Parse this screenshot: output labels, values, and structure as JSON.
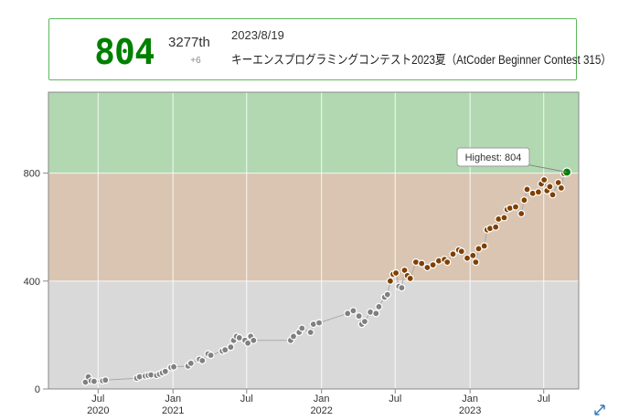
{
  "status": {
    "rating": "804",
    "rank": "3277th",
    "diff": "+6",
    "date": "2023/8/19",
    "contest": "キーエンスプログラミングコンテスト2023夏（AtCoder Beginner Contest 315）"
  },
  "colors": {
    "gray_band": "#d9d9d9",
    "brown_band": "#d9c5b2",
    "green_band": "#b2d8b2",
    "line": "#aaaaaa",
    "gray_point": "#808080",
    "brown_point": "#804000",
    "green_point": "#008000",
    "accent_border": "#5cb85c",
    "expand_icon": "#337ab7"
  },
  "icons": {
    "expand": "expand-arrows-icon"
  },
  "chart_data": {
    "type": "line",
    "ylim": [
      0,
      1100
    ],
    "y_ticks": [
      {
        "value": 0,
        "label": "0"
      },
      {
        "value": 400,
        "label": "400"
      },
      {
        "value": 800,
        "label": "800"
      }
    ],
    "xlim": [
      "2020-03-01",
      "2023-09-25"
    ],
    "x_ticks": [
      {
        "date": "2020-07-01",
        "label": "Jul",
        "year": "2020"
      },
      {
        "date": "2021-01-01",
        "label": "Jan",
        "year": "2021"
      },
      {
        "date": "2021-07-01",
        "label": "Jul",
        "year": ""
      },
      {
        "date": "2022-01-01",
        "label": "Jan",
        "year": "2022"
      },
      {
        "date": "2022-07-01",
        "label": "Jul",
        "year": ""
      },
      {
        "date": "2023-01-01",
        "label": "Jan",
        "year": "2023"
      },
      {
        "date": "2023-07-01",
        "label": "Jul",
        "year": ""
      }
    ],
    "bands": [
      {
        "from": 0,
        "to": 400,
        "color": "#d9d9d9"
      },
      {
        "from": 400,
        "to": 800,
        "color": "#d9c5b2"
      },
      {
        "from": 800,
        "to": 1100,
        "color": "#b2d8b2"
      }
    ],
    "highest_label": "Highest: 804",
    "points": [
      [
        "2020-05-31",
        25
      ],
      [
        "2020-06-07",
        45
      ],
      [
        "2020-06-14",
        30
      ],
      [
        "2020-06-21",
        28
      ],
      [
        "2020-07-12",
        30
      ],
      [
        "2020-07-19",
        33
      ],
      [
        "2020-10-04",
        40
      ],
      [
        "2020-10-11",
        45
      ],
      [
        "2020-10-25",
        48
      ],
      [
        "2020-11-01",
        50
      ],
      [
        "2020-11-08",
        52
      ],
      [
        "2020-11-22",
        50
      ],
      [
        "2020-11-29",
        55
      ],
      [
        "2020-12-06",
        60
      ],
      [
        "2020-12-13",
        65
      ],
      [
        "2020-12-27",
        80
      ],
      [
        "2021-01-03",
        82
      ],
      [
        "2021-02-07",
        85
      ],
      [
        "2021-02-14",
        95
      ],
      [
        "2021-03-07",
        110
      ],
      [
        "2021-03-14",
        105
      ],
      [
        "2021-03-28",
        130
      ],
      [
        "2021-04-04",
        125
      ],
      [
        "2021-05-02",
        140
      ],
      [
        "2021-05-09",
        145
      ],
      [
        "2021-05-23",
        155
      ],
      [
        "2021-05-30",
        180
      ],
      [
        "2021-06-06",
        195
      ],
      [
        "2021-06-13",
        190
      ],
      [
        "2021-06-27",
        180
      ],
      [
        "2021-07-04",
        170
      ],
      [
        "2021-07-11",
        195
      ],
      [
        "2021-07-18",
        180
      ],
      [
        "2021-10-17",
        180
      ],
      [
        "2021-10-24",
        195
      ],
      [
        "2021-11-07",
        210
      ],
      [
        "2021-11-14",
        225
      ],
      [
        "2021-12-05",
        210
      ],
      [
        "2021-12-12",
        240
      ],
      [
        "2021-12-26",
        245
      ],
      [
        "2022-03-06",
        280
      ],
      [
        "2022-03-20",
        290
      ],
      [
        "2022-04-03",
        270
      ],
      [
        "2022-04-10",
        240
      ],
      [
        "2022-04-17",
        250
      ],
      [
        "2022-05-01",
        285
      ],
      [
        "2022-05-15",
        280
      ],
      [
        "2022-05-22",
        305
      ],
      [
        "2022-06-05",
        340
      ],
      [
        "2022-06-12",
        350
      ],
      [
        "2022-06-19",
        400
      ],
      [
        "2022-06-26",
        425
      ],
      [
        "2022-07-03",
        430
      ],
      [
        "2022-07-10",
        380
      ],
      [
        "2022-07-17",
        375
      ],
      [
        "2022-07-24",
        440
      ],
      [
        "2022-07-31",
        420
      ],
      [
        "2022-08-07",
        410
      ],
      [
        "2022-08-21",
        470
      ],
      [
        "2022-09-04",
        465
      ],
      [
        "2022-09-18",
        450
      ],
      [
        "2022-10-02",
        460
      ],
      [
        "2022-10-16",
        475
      ],
      [
        "2022-10-30",
        480
      ],
      [
        "2022-11-06",
        470
      ],
      [
        "2022-11-20",
        500
      ],
      [
        "2022-12-04",
        515
      ],
      [
        "2022-12-11",
        510
      ],
      [
        "2022-12-25",
        485
      ],
      [
        "2023-01-08",
        495
      ],
      [
        "2023-01-15",
        470
      ],
      [
        "2023-01-22",
        520
      ],
      [
        "2023-02-05",
        530
      ],
      [
        "2023-02-12",
        590
      ],
      [
        "2023-02-19",
        595
      ],
      [
        "2023-03-05",
        600
      ],
      [
        "2023-03-12",
        630
      ],
      [
        "2023-03-26",
        635
      ],
      [
        "2023-04-02",
        665
      ],
      [
        "2023-04-09",
        670
      ],
      [
        "2023-04-23",
        675
      ],
      [
        "2023-05-07",
        650
      ],
      [
        "2023-05-14",
        700
      ],
      [
        "2023-05-21",
        740
      ],
      [
        "2023-06-04",
        725
      ],
      [
        "2023-06-18",
        730
      ],
      [
        "2023-06-25",
        760
      ],
      [
        "2023-07-02",
        775
      ],
      [
        "2023-07-09",
        735
      ],
      [
        "2023-07-16",
        750
      ],
      [
        "2023-07-23",
        720
      ],
      [
        "2023-08-06",
        765
      ],
      [
        "2023-08-13",
        745
      ],
      [
        "2023-08-20",
        798
      ],
      [
        "2023-08-27",
        804
      ]
    ]
  }
}
